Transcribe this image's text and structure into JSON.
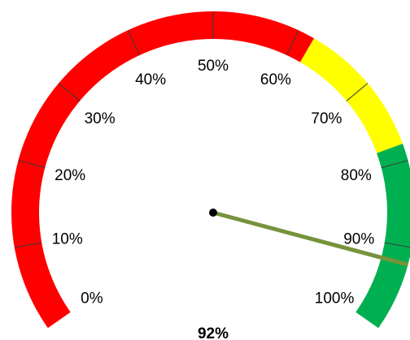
{
  "chart_data": {
    "type": "gauge",
    "value": 92,
    "value_label": "92%",
    "min": 0,
    "max": 100,
    "tick_labels": [
      "0%",
      "10%",
      "20%",
      "30%",
      "40%",
      "50%",
      "60%",
      "70%",
      "80%",
      "90%",
      "100%"
    ],
    "bands": [
      {
        "from": 0,
        "to": 62,
        "color": "#ff0000"
      },
      {
        "from": 62,
        "to": 78,
        "color": "#ffff00"
      },
      {
        "from": 78,
        "to": 100,
        "color": "#00b050"
      }
    ],
    "needle_color": "#76933c",
    "hub_color": "#000000"
  }
}
